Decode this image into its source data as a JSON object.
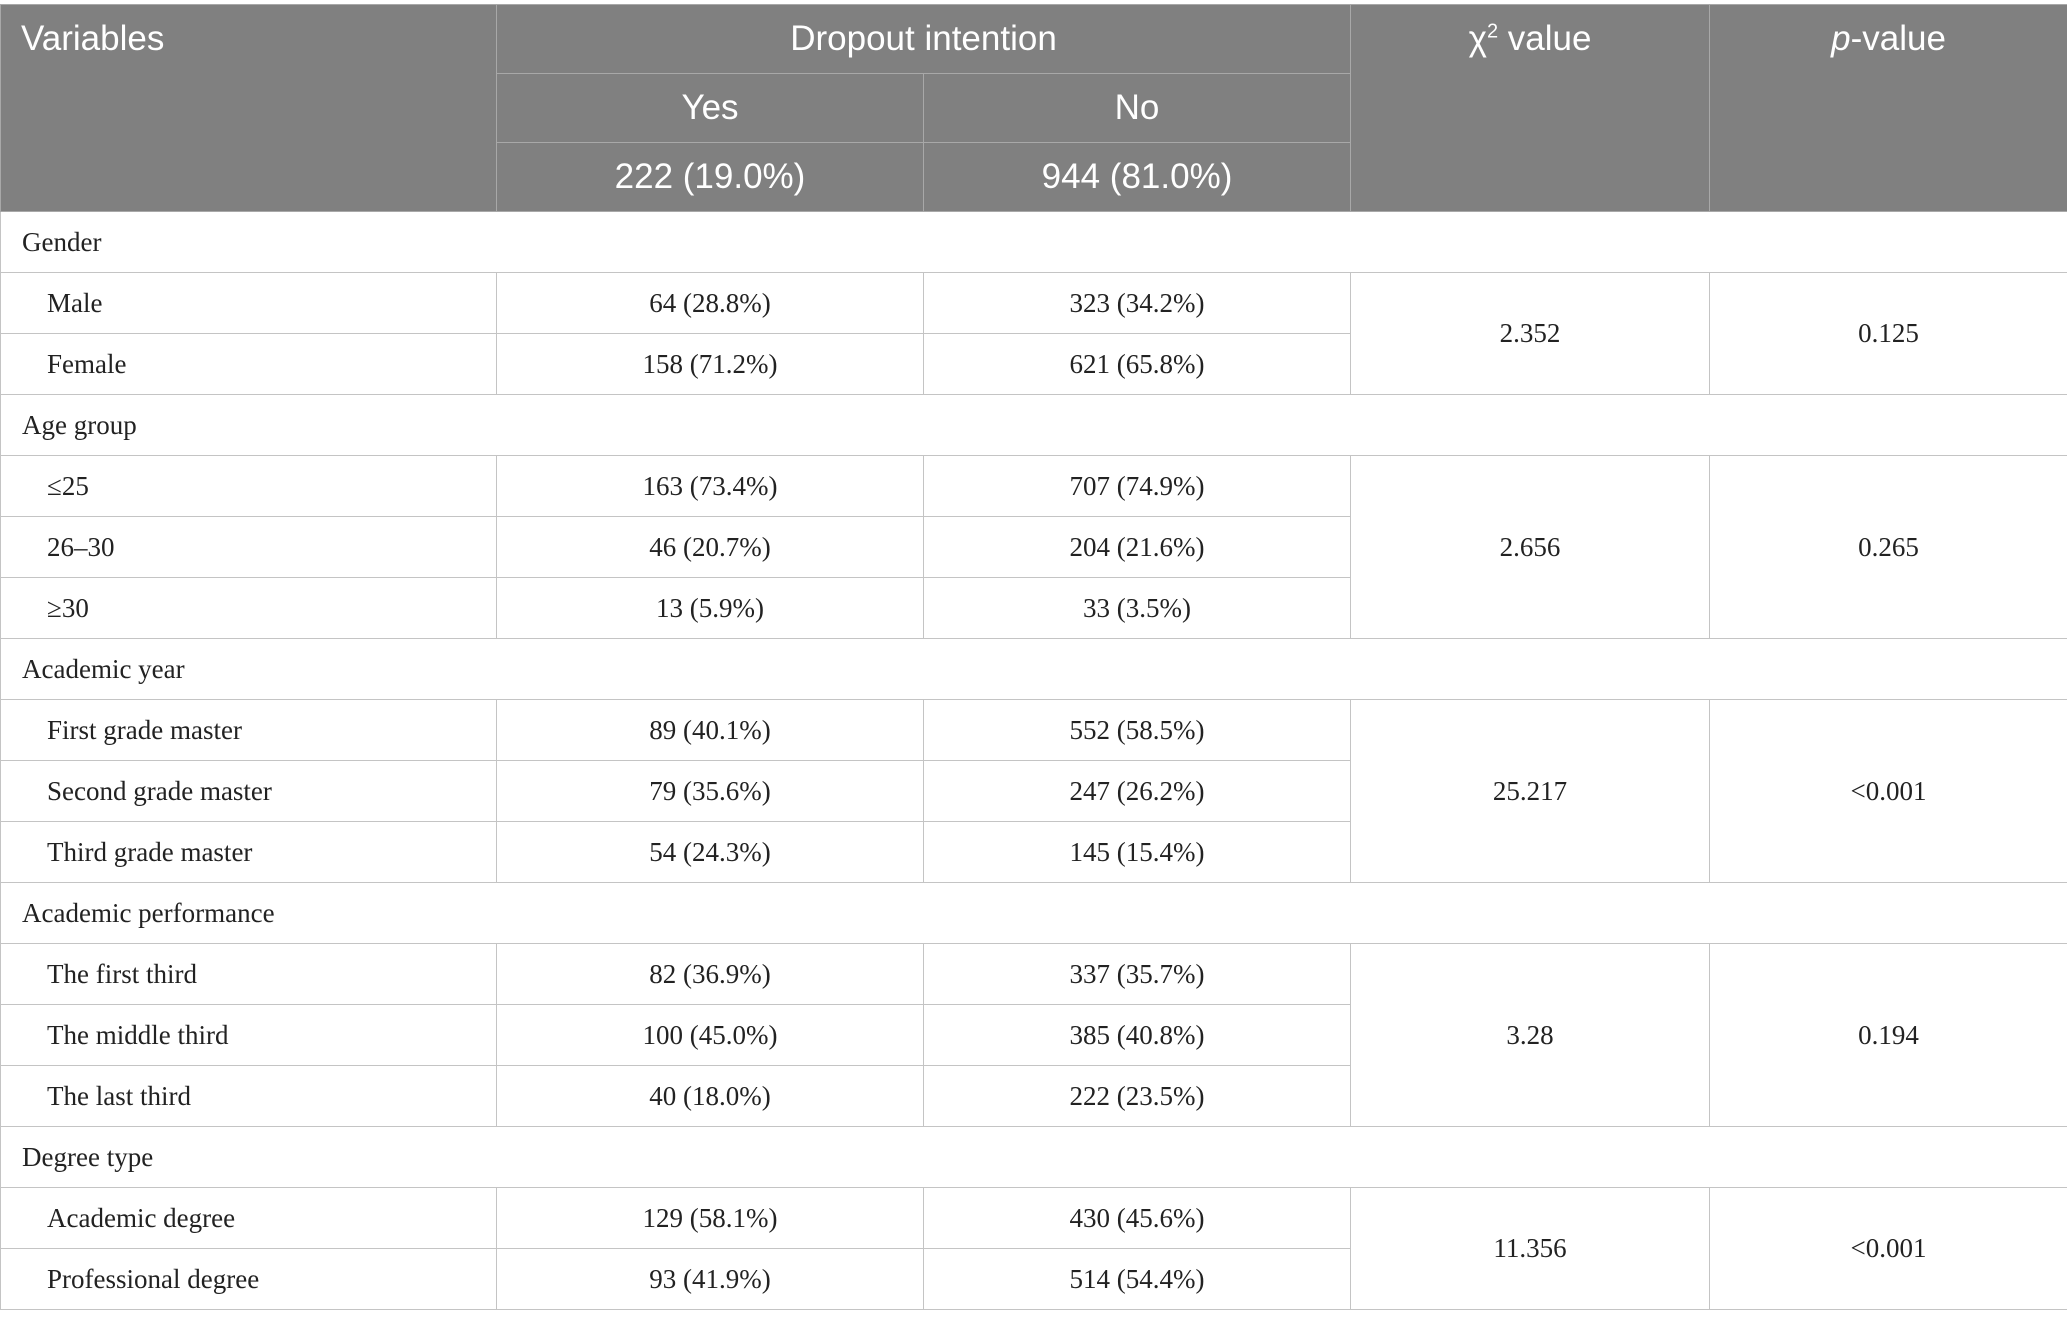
{
  "header": {
    "variables": "Variables",
    "dropout": "Dropout intention",
    "yes": "Yes",
    "no": "No",
    "yes_total": "222 (19.0%)",
    "no_total": "944 (81.0%)",
    "chi_square": {
      "symbol": "χ",
      "superscript": "2",
      "text": " value"
    },
    "p_value": {
      "italic": "p",
      "text": "-value"
    }
  },
  "groups": [
    {
      "name": "Gender",
      "chi2": "2.352",
      "p": "0.125",
      "rows": [
        {
          "label": "Male",
          "yes": "64 (28.8%)",
          "no": "323 (34.2%)"
        },
        {
          "label": "Female",
          "yes": "158 (71.2%)",
          "no": "621 (65.8%)"
        }
      ]
    },
    {
      "name": "Age group",
      "chi2": "2.656",
      "p": "0.265",
      "rows": [
        {
          "label": "≤25",
          "yes": "163 (73.4%)",
          "no": "707 (74.9%)"
        },
        {
          "label": "26–30",
          "yes": "46 (20.7%)",
          "no": "204 (21.6%)"
        },
        {
          "label": "≥30",
          "yes": "13 (5.9%)",
          "no": "33 (3.5%)"
        }
      ]
    },
    {
      "name": "Academic year",
      "chi2": "25.217",
      "p": "<0.001",
      "rows": [
        {
          "label": "First grade master",
          "yes": "89 (40.1%)",
          "no": "552 (58.5%)"
        },
        {
          "label": "Second grade master",
          "yes": "79 (35.6%)",
          "no": "247 (26.2%)"
        },
        {
          "label": "Third grade master",
          "yes": "54 (24.3%)",
          "no": "145 (15.4%)"
        }
      ]
    },
    {
      "name": "Academic performance",
      "chi2": "3.28",
      "p": "0.194",
      "rows": [
        {
          "label": "The first third",
          "yes": "82 (36.9%)",
          "no": "337 (35.7%)"
        },
        {
          "label": "The middle third",
          "yes": "100 (45.0%)",
          "no": "385 (40.8%)"
        },
        {
          "label": "The last third",
          "yes": "40 (18.0%)",
          "no": "222 (23.5%)"
        }
      ]
    },
    {
      "name": "Degree type",
      "chi2": "11.356",
      "p": "<0.001",
      "rows": [
        {
          "label": "Academic degree",
          "yes": "129 (58.1%)",
          "no": "430 (45.6%)"
        },
        {
          "label": "Professional degree",
          "yes": "93 (41.9%)",
          "no": "514 (54.4%)"
        }
      ]
    }
  ]
}
